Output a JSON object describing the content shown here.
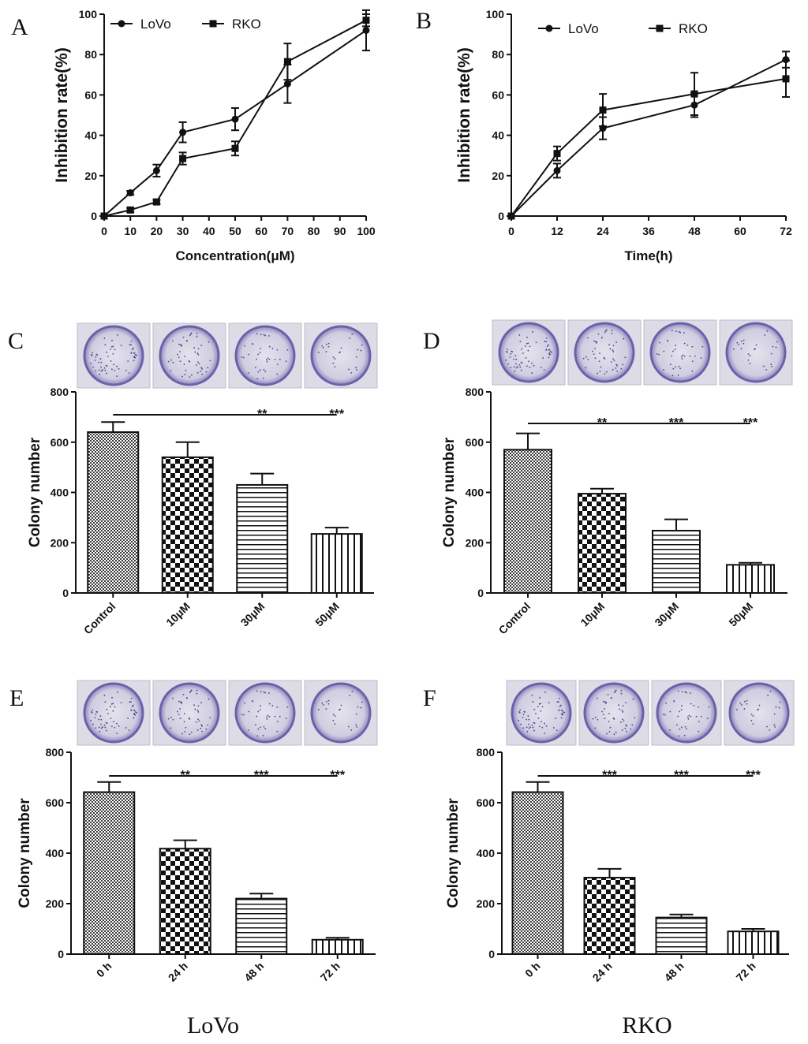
{
  "colors": {
    "ink": "#111111",
    "dish_stain": "#7d76b4",
    "dish_bg": "#dcdbe6",
    "dish_rim": "#6a62a8"
  },
  "captions": [
    "LoVo",
    "RKO"
  ],
  "chart_data": [
    {
      "panel": "A",
      "type": "line",
      "xlabel": "Concentration(μM)",
      "ylabel": "Inhibition rate(%)",
      "xlim": [
        0,
        100
      ],
      "ylim": [
        0,
        100
      ],
      "xticks": [
        0,
        10,
        20,
        30,
        40,
        50,
        60,
        70,
        80,
        90,
        100
      ],
      "yticks": [
        0,
        20,
        40,
        60,
        80,
        100
      ],
      "series": [
        {
          "name": "LoVo",
          "marker": "circle",
          "x": [
            0,
            10,
            20,
            30,
            50,
            70,
            100
          ],
          "y": [
            0,
            11.5,
            22.5,
            41.5,
            48,
            65.5,
            92
          ],
          "err": [
            0,
            1,
            3,
            5,
            5.5,
            9.5,
            10
          ]
        },
        {
          "name": "RKO",
          "marker": "square",
          "x": [
            0,
            10,
            20,
            30,
            50,
            70,
            100
          ],
          "y": [
            0,
            3,
            7,
            28.5,
            33.5,
            76.5,
            97
          ],
          "err": [
            0,
            1,
            1,
            3,
            3.5,
            9,
            3
          ]
        }
      ]
    },
    {
      "panel": "B",
      "type": "line",
      "xlabel": "Time(h)",
      "ylabel": "Inhibition rate(%)",
      "xlim": [
        0,
        72
      ],
      "ylim": [
        0,
        100
      ],
      "xticks": [
        0,
        12,
        24,
        36,
        48,
        60,
        72
      ],
      "yticks": [
        0,
        20,
        40,
        60,
        80,
        100
      ],
      "series": [
        {
          "name": "LoVo",
          "marker": "circle",
          "x": [
            0,
            12,
            24,
            48,
            72
          ],
          "y": [
            0,
            22.5,
            43.5,
            55,
            77.5
          ],
          "err": [
            0,
            3.5,
            5.5,
            6,
            4
          ]
        },
        {
          "name": "RKO",
          "marker": "square",
          "x": [
            0,
            12,
            24,
            48,
            72
          ],
          "y": [
            0,
            31,
            52.5,
            60.5,
            68
          ],
          "err": [
            0,
            3.5,
            8,
            10.5,
            9
          ]
        }
      ]
    },
    {
      "panel": "C",
      "type": "bar",
      "ylabel": "Colony number",
      "ylim": [
        0,
        800
      ],
      "yticks": [
        0,
        200,
        400,
        600,
        800
      ],
      "categories": [
        "Control",
        "10μM",
        "30μM",
        "50μM"
      ],
      "values": [
        640,
        540,
        430,
        235
      ],
      "err": [
        40,
        60,
        45,
        25
      ],
      "significance": [
        "",
        "",
        "**",
        "***"
      ]
    },
    {
      "panel": "D",
      "type": "bar",
      "ylabel": "Colony number",
      "ylim": [
        0,
        800
      ],
      "yticks": [
        0,
        200,
        400,
        600,
        800
      ],
      "categories": [
        "Control",
        "10μM",
        "30μM",
        "50μM"
      ],
      "values": [
        570,
        395,
        248,
        112
      ],
      "err": [
        65,
        20,
        45,
        8
      ],
      "significance": [
        "",
        "**",
        "***",
        "***"
      ]
    },
    {
      "panel": "E",
      "type": "bar",
      "ylabel": "Colony number",
      "ylim": [
        0,
        800
      ],
      "yticks": [
        0,
        200,
        400,
        600,
        800
      ],
      "categories": [
        "0 h",
        "24 h",
        "48 h",
        "72 h"
      ],
      "values": [
        642,
        418,
        220,
        57
      ],
      "err": [
        40,
        33,
        20,
        8
      ],
      "significance": [
        "",
        "**",
        "***",
        "***"
      ]
    },
    {
      "panel": "F",
      "type": "bar",
      "ylabel": "Colony number",
      "ylim": [
        0,
        800
      ],
      "yticks": [
        0,
        200,
        400,
        600,
        800
      ],
      "categories": [
        "0 h",
        "24 h",
        "48 h",
        "72 h"
      ],
      "values": [
        642,
        303,
        145,
        90
      ],
      "err": [
        40,
        35,
        12,
        10
      ],
      "significance": [
        "",
        "***",
        "***",
        "***"
      ]
    }
  ]
}
